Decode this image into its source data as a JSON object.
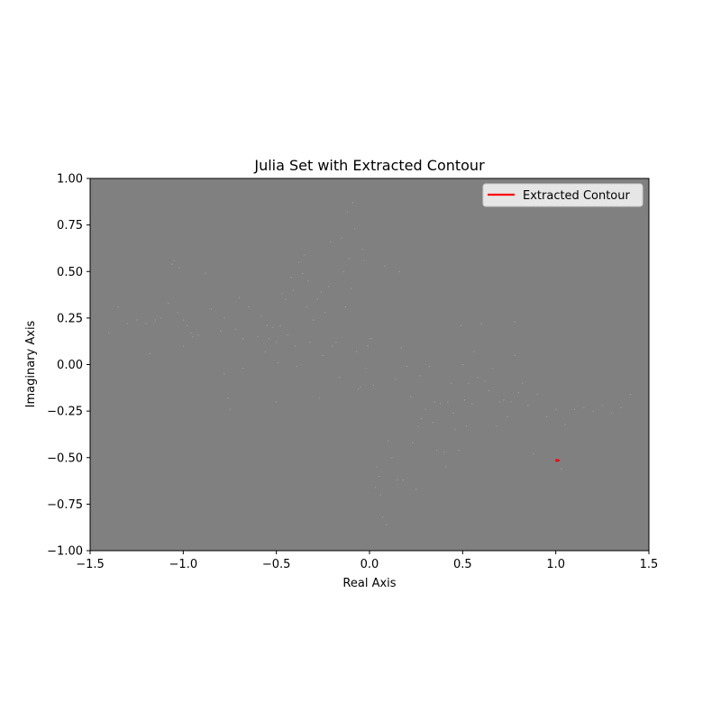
{
  "chart_data": {
    "type": "scatter",
    "title": "Julia Set with Extracted Contour",
    "xlabel": "Real Axis",
    "ylabel": "Imaginary Axis",
    "xlim": [
      -1.5,
      1.5
    ],
    "ylim": [
      -1.0,
      1.0
    ],
    "xticks": [
      -1.5,
      -1.0,
      -0.5,
      0.0,
      0.5,
      1.0,
      1.5
    ],
    "xtick_labels": [
      "−1.5",
      "−1.0",
      "−0.5",
      "0.0",
      "0.5",
      "1.0",
      "1.5"
    ],
    "yticks": [
      -1.0,
      -0.75,
      -0.5,
      -0.25,
      0.0,
      0.25,
      0.5,
      0.75,
      1.0
    ],
    "ytick_labels": [
      "−1.00",
      "−0.75",
      "−0.50",
      "−0.25",
      "0.00",
      "0.25",
      "0.50",
      "0.75",
      "1.00"
    ],
    "grid": false,
    "legend_position": "top-right",
    "background_color": "#808080",
    "series": [
      {
        "name": "Extracted Contour",
        "type": "line",
        "color": "#ff0000",
        "x": [
          1.005,
          1.015
        ],
        "y": [
          -0.515,
          -0.515
        ]
      }
    ],
    "julia_points_color": "#9a9a9a",
    "julia_points": [
      [
        -1.4,
        0.17
      ],
      [
        -1.35,
        0.31
      ],
      [
        -1.3,
        0.22
      ],
      [
        -1.25,
        0.24
      ],
      [
        -1.2,
        0.22
      ],
      [
        -1.18,
        0.06
      ],
      [
        -1.15,
        0.24
      ],
      [
        -1.12,
        0.25
      ],
      [
        -1.08,
        0.33
      ],
      [
        -1.06,
        0.54
      ],
      [
        -1.05,
        0.56
      ],
      [
        -1.03,
        0.28
      ],
      [
        -1.02,
        0.52
      ],
      [
        -1.0,
        0.24
      ],
      [
        -1.0,
        0.1
      ],
      [
        -0.98,
        0.21
      ],
      [
        -0.96,
        0.17
      ],
      [
        -0.95,
        0.15
      ],
      [
        -0.92,
        0.16
      ],
      [
        -0.88,
        0.49
      ],
      [
        -0.85,
        0.3
      ],
      [
        -0.8,
        0.18
      ],
      [
        -0.78,
        0.25
      ],
      [
        -0.78,
        -0.05
      ],
      [
        -0.76,
        -0.18
      ],
      [
        -0.75,
        -0.24
      ],
      [
        -0.72,
        0.19
      ],
      [
        -0.7,
        0.36
      ],
      [
        -0.68,
        0.14
      ],
      [
        -0.68,
        -0.02
      ],
      [
        -0.65,
        0.31
      ],
      [
        -0.6,
        0.15
      ],
      [
        -0.58,
        0.26
      ],
      [
        -0.56,
        0.07
      ],
      [
        -0.55,
        0.21
      ],
      [
        -0.54,
        0.14
      ],
      [
        -0.52,
        0.2
      ],
      [
        -0.5,
        0.12
      ],
      [
        -0.5,
        -0.2
      ],
      [
        -0.49,
        0.01
      ],
      [
        -0.48,
        0.21
      ],
      [
        -0.47,
        0.38
      ],
      [
        -0.45,
        0.35
      ],
      [
        -0.44,
        0.16
      ],
      [
        -0.42,
        0.47
      ],
      [
        -0.41,
        0.4
      ],
      [
        -0.4,
        0.1
      ],
      [
        -0.39,
        -0.01
      ],
      [
        -0.38,
        0.55
      ],
      [
        -0.36,
        0.49
      ],
      [
        -0.35,
        0.59
      ],
      [
        -0.34,
        0.31
      ],
      [
        -0.33,
        0.45
      ],
      [
        -0.32,
        0.12
      ],
      [
        -0.3,
        0.24
      ],
      [
        -0.28,
        0.35
      ],
      [
        -0.27,
        -0.18
      ],
      [
        -0.26,
        0.39
      ],
      [
        -0.25,
        0.05
      ],
      [
        -0.24,
        0.28
      ],
      [
        -0.22,
        0.42
      ],
      [
        -0.21,
        0.66
      ],
      [
        -0.2,
        0.1
      ],
      [
        -0.18,
        0.12
      ],
      [
        -0.16,
        -0.07
      ],
      [
        -0.15,
        0.68
      ],
      [
        -0.14,
        0.5
      ],
      [
        -0.13,
        0.31
      ],
      [
        -0.12,
        0.82
      ],
      [
        -0.11,
        0.57
      ],
      [
        -0.1,
        0.41
      ],
      [
        -0.09,
        0.87
      ],
      [
        -0.08,
        0.73
      ],
      [
        -0.07,
        0.07
      ],
      [
        -0.06,
        -0.13
      ],
      [
        -0.05,
        -0.12
      ],
      [
        -0.04,
        0.62
      ],
      [
        -0.03,
        0.56
      ],
      [
        -0.02,
        -0.02
      ],
      [
        -0.01,
        0.1
      ],
      [
        0.0,
        0.14
      ],
      [
        0.01,
        0.14
      ],
      [
        0.02,
        -0.11
      ],
      [
        0.03,
        -0.66
      ],
      [
        0.04,
        -0.55
      ],
      [
        0.05,
        -0.6
      ],
      [
        0.06,
        -0.7
      ],
      [
        0.07,
        -0.82
      ],
      [
        0.08,
        0.53
      ],
      [
        0.09,
        -0.86
      ],
      [
        0.1,
        -0.41
      ],
      [
        0.12,
        -0.5
      ],
      [
        0.14,
        -0.08
      ],
      [
        0.15,
        -0.62
      ],
      [
        0.16,
        0.5
      ],
      [
        0.17,
        0.09
      ],
      [
        0.18,
        -0.62
      ],
      [
        0.2,
        -0.01
      ],
      [
        0.22,
        -0.17
      ],
      [
        0.23,
        -0.42
      ],
      [
        0.25,
        -0.67
      ],
      [
        0.26,
        -0.33
      ],
      [
        0.27,
        -0.06
      ],
      [
        0.28,
        -0.29
      ],
      [
        0.3,
        -0.24
      ],
      [
        0.32,
        -0.01
      ],
      [
        0.34,
        -0.31
      ],
      [
        0.35,
        -0.2
      ],
      [
        0.36,
        -0.46
      ],
      [
        0.38,
        -0.21
      ],
      [
        0.4,
        -0.47
      ],
      [
        0.41,
        -0.55
      ],
      [
        0.42,
        -0.2
      ],
      [
        0.44,
        -0.1
      ],
      [
        0.45,
        -0.26
      ],
      [
        0.46,
        -0.35
      ],
      [
        0.48,
        -0.46
      ],
      [
        0.49,
        0.21
      ],
      [
        0.5,
        0.0
      ],
      [
        0.51,
        -0.19
      ],
      [
        0.52,
        -0.33
      ],
      [
        0.53,
        -0.1
      ],
      [
        0.55,
        -0.21
      ],
      [
        0.56,
        0.07
      ],
      [
        0.58,
        -0.07
      ],
      [
        0.6,
        0.22
      ],
      [
        0.62,
        -0.09
      ],
      [
        0.64,
        -0.14
      ],
      [
        0.66,
        -0.02
      ],
      [
        0.68,
        -0.33
      ],
      [
        0.7,
        -0.2
      ],
      [
        0.72,
        -0.19
      ],
      [
        0.74,
        -0.28
      ],
      [
        0.76,
        -0.2
      ],
      [
        0.78,
        0.05
      ],
      [
        0.8,
        -0.15
      ],
      [
        0.82,
        -0.1
      ],
      [
        0.85,
        -0.22
      ],
      [
        0.9,
        -0.16
      ],
      [
        0.95,
        -0.28
      ],
      [
        1.0,
        -0.24
      ],
      [
        1.05,
        -0.32
      ],
      [
        1.1,
        -0.24
      ],
      [
        1.15,
        -0.23
      ],
      [
        1.2,
        -0.25
      ],
      [
        1.25,
        -0.22
      ],
      [
        1.3,
        -0.26
      ],
      [
        1.35,
        -0.23
      ],
      [
        1.4,
        -0.16
      ],
      [
        0.78,
        0.23
      ],
      [
        0.88,
        -0.48
      ],
      [
        1.03,
        -0.56
      ]
    ]
  }
}
